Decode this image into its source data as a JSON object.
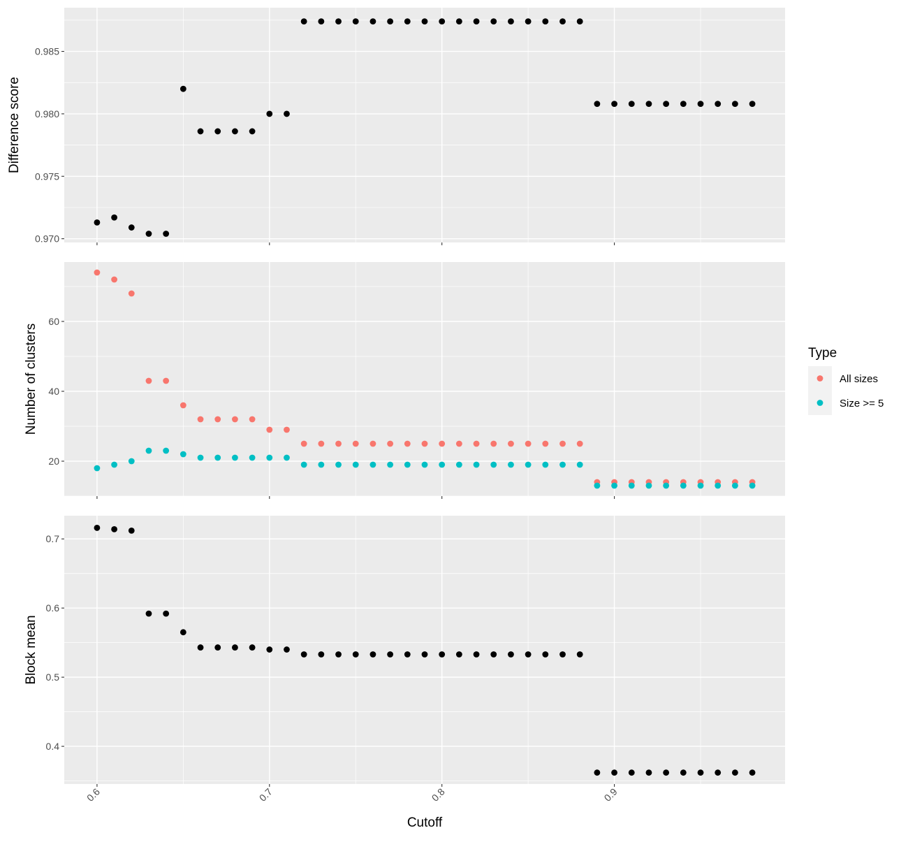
{
  "chart_data": [
    {
      "type": "scatter",
      "ylabel": "Difference score",
      "xlim": [
        0.581,
        0.999
      ],
      "ylim": [
        0.9697,
        0.9885
      ],
      "y_major_ticks": [
        0.97,
        0.975,
        0.98,
        0.985
      ],
      "y_tick_labels": [
        "0.970",
        "0.975",
        "0.980",
        "0.985"
      ],
      "x": [
        0.6,
        0.61,
        0.62,
        0.63,
        0.64,
        0.65,
        0.66,
        0.67,
        0.68,
        0.69,
        0.7,
        0.71,
        0.72,
        0.73,
        0.74,
        0.75,
        0.76,
        0.77,
        0.78,
        0.79,
        0.8,
        0.81,
        0.82,
        0.83,
        0.84,
        0.85,
        0.86,
        0.87,
        0.88,
        0.89,
        0.9,
        0.91,
        0.92,
        0.93,
        0.94,
        0.95,
        0.96,
        0.97,
        0.98
      ],
      "series": [
        {
          "color": "#000000",
          "values": [
            0.9713,
            0.9717,
            0.9709,
            0.9704,
            0.9704,
            0.982,
            0.9786,
            0.9786,
            0.9786,
            0.9786,
            0.98,
            0.98,
            0.9874,
            0.9874,
            0.9874,
            0.9874,
            0.9874,
            0.9874,
            0.9874,
            0.9874,
            0.9874,
            0.9874,
            0.9874,
            0.9874,
            0.9874,
            0.9874,
            0.9874,
            0.9874,
            0.9874,
            0.9808,
            0.9808,
            0.9808,
            0.9808,
            0.9808,
            0.9808,
            0.9808,
            0.9808,
            0.9808,
            0.9808
          ]
        }
      ]
    },
    {
      "type": "scatter",
      "ylabel": "Number of clusters",
      "xlim": [
        0.581,
        0.999
      ],
      "ylim": [
        10,
        77
      ],
      "y_major_ticks": [
        20,
        40,
        60
      ],
      "y_tick_labels": [
        "20",
        "40",
        "60"
      ],
      "x": [
        0.6,
        0.61,
        0.62,
        0.63,
        0.64,
        0.65,
        0.66,
        0.67,
        0.68,
        0.69,
        0.7,
        0.71,
        0.72,
        0.73,
        0.74,
        0.75,
        0.76,
        0.77,
        0.78,
        0.79,
        0.8,
        0.81,
        0.82,
        0.83,
        0.84,
        0.85,
        0.86,
        0.87,
        0.88,
        0.89,
        0.9,
        0.91,
        0.92,
        0.93,
        0.94,
        0.95,
        0.96,
        0.97,
        0.98
      ],
      "series": [
        {
          "name": "All sizes",
          "color": "#F8766D",
          "values": [
            74,
            72,
            68,
            43,
            43,
            36,
            32,
            32,
            32,
            32,
            29,
            29,
            25,
            25,
            25,
            25,
            25,
            25,
            25,
            25,
            25,
            25,
            25,
            25,
            25,
            25,
            25,
            25,
            25,
            14,
            14,
            14,
            14,
            14,
            14,
            14,
            14,
            14,
            14
          ]
        },
        {
          "name": "Size >= 5",
          "color": "#00BFC4",
          "values": [
            18,
            19,
            20,
            23,
            23,
            22,
            21,
            21,
            21,
            21,
            21,
            21,
            19,
            19,
            19,
            19,
            19,
            19,
            19,
            19,
            19,
            19,
            19,
            19,
            19,
            19,
            19,
            19,
            19,
            13,
            13,
            13,
            13,
            13,
            13,
            13,
            13,
            13,
            13
          ]
        }
      ],
      "legend": {
        "title": "Type",
        "placement": "right"
      }
    },
    {
      "type": "scatter",
      "ylabel": "Block mean",
      "xlabel": "Cutoff",
      "xlim": [
        0.581,
        0.999
      ],
      "ylim": [
        0.3455,
        0.7336
      ],
      "y_major_ticks": [
        0.4,
        0.5,
        0.6,
        0.7
      ],
      "y_tick_labels": [
        "0.4",
        "0.5",
        "0.6",
        "0.7"
      ],
      "x_major_ticks": [
        0.6,
        0.7,
        0.8,
        0.9
      ],
      "x_tick_labels": [
        "0.6",
        "0.7",
        "0.8",
        "0.9"
      ],
      "x": [
        0.6,
        0.61,
        0.62,
        0.63,
        0.64,
        0.65,
        0.66,
        0.67,
        0.68,
        0.69,
        0.7,
        0.71,
        0.72,
        0.73,
        0.74,
        0.75,
        0.76,
        0.77,
        0.78,
        0.79,
        0.8,
        0.81,
        0.82,
        0.83,
        0.84,
        0.85,
        0.86,
        0.87,
        0.88,
        0.89,
        0.9,
        0.91,
        0.92,
        0.93,
        0.94,
        0.95,
        0.96,
        0.97,
        0.98
      ],
      "series": [
        {
          "color": "#000000",
          "values": [
            0.716,
            0.714,
            0.712,
            0.592,
            0.592,
            0.565,
            0.543,
            0.543,
            0.543,
            0.543,
            0.54,
            0.54,
            0.533,
            0.533,
            0.533,
            0.533,
            0.533,
            0.533,
            0.533,
            0.533,
            0.533,
            0.533,
            0.533,
            0.533,
            0.533,
            0.533,
            0.533,
            0.533,
            0.533,
            0.362,
            0.362,
            0.362,
            0.362,
            0.362,
            0.362,
            0.362,
            0.362,
            0.362,
            0.362
          ]
        }
      ]
    }
  ],
  "style": {
    "panel_background": "#EBEBEB",
    "grid_color": "#FFFFFF",
    "tick_text_color": "#4D4D4D",
    "tick_mark_color": "#333333",
    "legend_key_background": "#F2F2F2"
  }
}
